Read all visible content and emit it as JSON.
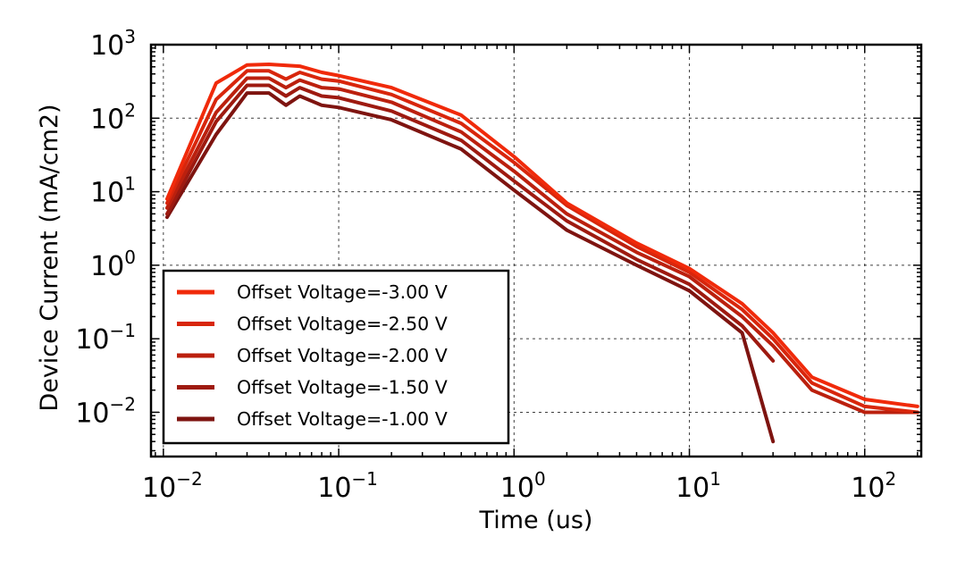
{
  "chart_data": {
    "type": "line",
    "xlabel": "Time (us)",
    "ylabel": "Device Current (mA/cm2)",
    "xscale": "log",
    "yscale": "log",
    "xlim": [
      0.0085,
      210
    ],
    "ylim": [
      0.0025,
      1000
    ],
    "grid": true,
    "legend_position": "lower-left",
    "x_ticks": [
      {
        "base": "10",
        "exp": "−2",
        "value": 0.01
      },
      {
        "base": "10",
        "exp": "−1",
        "value": 0.1
      },
      {
        "base": "10",
        "exp": "0",
        "value": 1
      },
      {
        "base": "10",
        "exp": "1",
        "value": 10
      },
      {
        "base": "10",
        "exp": "2",
        "value": 100
      }
    ],
    "y_ticks": [
      {
        "base": "10",
        "exp": "−2",
        "value": 0.01
      },
      {
        "base": "10",
        "exp": "−1",
        "value": 0.1
      },
      {
        "base": "10",
        "exp": "0",
        "value": 1
      },
      {
        "base": "10",
        "exp": "1",
        "value": 10
      },
      {
        "base": "10",
        "exp": "2",
        "value": 100
      },
      {
        "base": "10",
        "exp": "3",
        "value": 1000
      }
    ],
    "series": [
      {
        "name": "Offset Voltage=-3.00 V",
        "color": "#f02a0a",
        "x": [
          0.0105,
          0.02,
          0.03,
          0.04,
          0.06,
          0.08,
          0.1,
          0.2,
          0.5,
          1,
          2,
          5,
          10,
          20,
          30,
          50,
          100,
          200
        ],
        "y": [
          8,
          300,
          530,
          540,
          510,
          420,
          380,
          260,
          110,
          30,
          7,
          2,
          0.9,
          0.3,
          0.12,
          0.03,
          0.015,
          0.012
        ]
      },
      {
        "name": "Offset Voltage=-2.50 V",
        "color": "#d8260c",
        "x": [
          0.0105,
          0.02,
          0.03,
          0.04,
          0.05,
          0.06,
          0.08,
          0.1,
          0.2,
          0.5,
          1,
          2,
          5,
          10,
          20,
          30,
          50,
          100,
          200
        ],
        "y": [
          7,
          180,
          440,
          440,
          340,
          420,
          340,
          320,
          210,
          85,
          25,
          6.5,
          1.8,
          0.8,
          0.25,
          0.1,
          0.025,
          0.012,
          0.01
        ]
      },
      {
        "name": "Offset Voltage=-2.00 V",
        "color": "#bb200e",
        "x": [
          0.0105,
          0.02,
          0.03,
          0.04,
          0.05,
          0.06,
          0.08,
          0.1,
          0.2,
          0.5,
          1,
          2,
          5,
          10,
          20,
          30,
          50,
          100,
          200
        ],
        "y": [
          6,
          120,
          350,
          350,
          260,
          330,
          260,
          250,
          165,
          65,
          19,
          5,
          1.5,
          0.7,
          0.2,
          0.08,
          0.02,
          0.01,
          0.01
        ]
      },
      {
        "name": "Offset Voltage=-1.50 V",
        "color": "#9e1a10",
        "x": [
          0.0105,
          0.02,
          0.03,
          0.04,
          0.05,
          0.06,
          0.08,
          0.1,
          0.2,
          0.5,
          1,
          2,
          5,
          10,
          20,
          30
        ],
        "y": [
          5,
          90,
          280,
          280,
          200,
          260,
          200,
          190,
          125,
          50,
          14,
          4,
          1.2,
          0.55,
          0.15,
          0.05
        ]
      },
      {
        "name": "Offset Voltage=-1.00 V",
        "color": "#7e1410",
        "x": [
          0.0105,
          0.02,
          0.03,
          0.04,
          0.05,
          0.06,
          0.08,
          0.1,
          0.2,
          0.5,
          1,
          2,
          5,
          10,
          20,
          30
        ],
        "y": [
          4.5,
          60,
          220,
          220,
          150,
          200,
          150,
          140,
          95,
          38,
          10.5,
          3,
          1,
          0.45,
          0.12,
          0.004
        ]
      }
    ]
  }
}
